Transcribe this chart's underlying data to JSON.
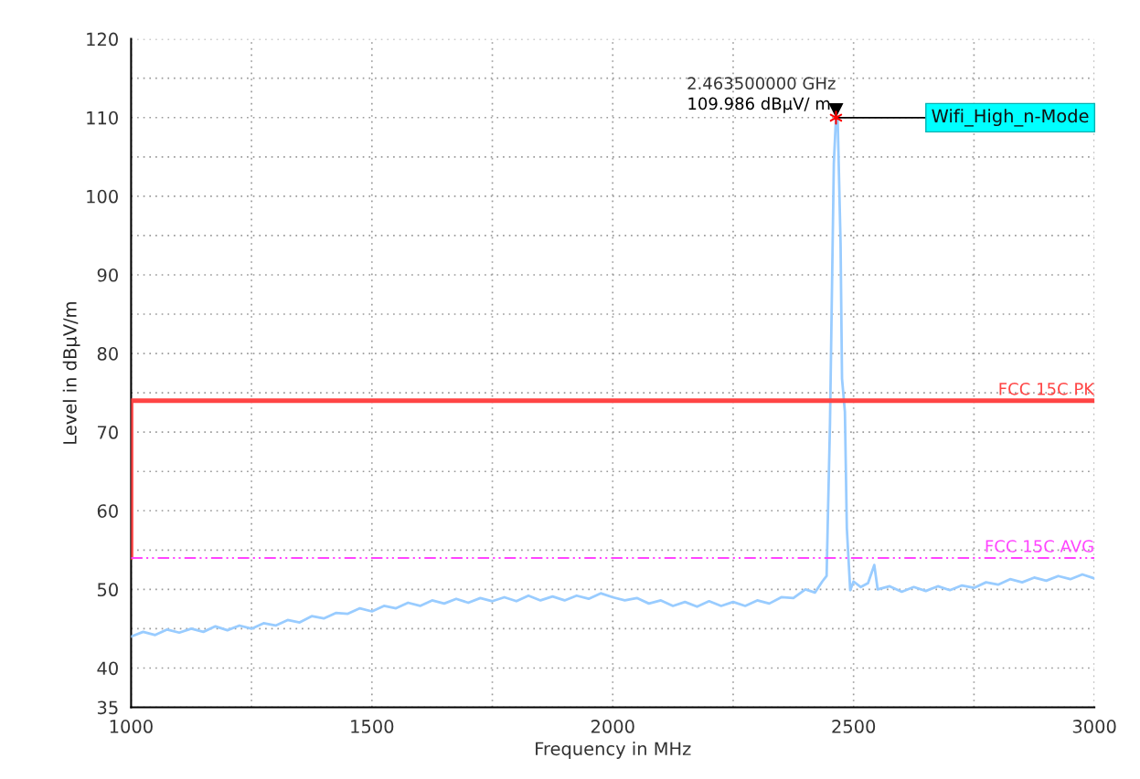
{
  "chart_data": {
    "type": "line",
    "xlabel": "Frequency in MHz",
    "ylabel": "Level in dBµV/m",
    "xlim": [
      1000,
      3000
    ],
    "xticks": [
      1000,
      {
        "value": 1250,
        "label": null
      },
      1500,
      {
        "value": 1750,
        "label": null
      },
      2000,
      {
        "value": 2250,
        "label": null
      },
      2500,
      {
        "value": 2750,
        "label": null
      },
      3000
    ],
    "ylim": [
      35,
      120
    ],
    "yticks": [
      35,
      40,
      {
        "value": 45,
        "label": null
      },
      50,
      {
        "value": 55,
        "label": null
      },
      60,
      {
        "value": 65,
        "label": null
      },
      70,
      {
        "value": 75,
        "label": null
      },
      80,
      {
        "value": 85,
        "label": null
      },
      90,
      {
        "value": 95,
        "label": null
      },
      100,
      {
        "value": 105,
        "label": null
      },
      110,
      {
        "value": 115,
        "label": null
      },
      120
    ],
    "grid": true,
    "legend": false,
    "series": [
      {
        "color": "#99ccff",
        "line_style": "solid",
        "x": [
          1000,
          1025,
          1050,
          1075,
          1100,
          1125,
          1150,
          1175,
          1200,
          1225,
          1250,
          1275,
          1300,
          1325,
          1350,
          1375,
          1400,
          1425,
          1450,
          1475,
          1500,
          1525,
          1550,
          1575,
          1600,
          1625,
          1650,
          1675,
          1700,
          1725,
          1750,
          1775,
          1800,
          1825,
          1850,
          1875,
          1900,
          1925,
          1950,
          1975,
          2000,
          2025,
          2050,
          2075,
          2100,
          2125,
          2150,
          2175,
          2200,
          2225,
          2250,
          2275,
          2300,
          2325,
          2350,
          2375,
          2400,
          2420,
          2435,
          2444,
          2446,
          2451,
          2459,
          2463.5,
          2467,
          2473,
          2476,
          2482,
          2486,
          2493,
          2500,
          2515,
          2530,
          2543,
          2550,
          2575,
          2600,
          2625,
          2650,
          2675,
          2700,
          2725,
          2750,
          2775,
          2800,
          2825,
          2850,
          2875,
          2900,
          2925,
          2950,
          2975,
          3000
        ],
        "values": [
          44.0,
          44.6,
          44.2,
          44.9,
          44.5,
          45.0,
          44.6,
          45.3,
          44.8,
          45.4,
          45.0,
          45.7,
          45.4,
          46.1,
          45.8,
          46.6,
          46.3,
          47.0,
          46.9,
          47.6,
          47.2,
          47.9,
          47.6,
          48.3,
          47.9,
          48.6,
          48.2,
          48.8,
          48.3,
          48.9,
          48.5,
          49.0,
          48.5,
          49.2,
          48.6,
          49.1,
          48.6,
          49.2,
          48.8,
          49.5,
          49.0,
          48.6,
          48.9,
          48.2,
          48.6,
          47.9,
          48.4,
          47.8,
          48.5,
          47.9,
          48.4,
          47.9,
          48.6,
          48.2,
          49.0,
          48.9,
          50.0,
          49.6,
          51.0,
          51.7,
          57.3,
          71.0,
          104.2,
          110,
          109.8,
          94.0,
          76.8,
          72.6,
          57.8,
          49.9,
          51.0,
          50.3,
          50.8,
          53.1,
          50.0,
          50.4,
          49.7,
          50.3,
          49.8,
          50.4,
          49.9,
          50.5,
          50.2,
          50.9,
          50.6,
          51.3,
          50.9,
          51.5,
          51.1,
          51.7,
          51.3,
          51.9,
          51.4
        ]
      },
      {
        "name": "FCC 15C PK",
        "color": "#ff4444",
        "line_style": "solid",
        "x": [
          1000,
          1000,
          3000
        ],
        "values": [
          54,
          74,
          74
        ]
      },
      {
        "name": "FCC 15C AVG",
        "color": "#ff44ff",
        "line_style": "dashdot",
        "x": [
          1000,
          3000
        ],
        "values": [
          54,
          54
        ]
      },
      {
        "type": "scatter",
        "color": "#ff0000",
        "marker": "cross",
        "x": [
          2463.5
        ],
        "values": [
          109.986
        ]
      }
    ],
    "annotations": [
      "2.463500000 GHz",
      "109.986 dBµV/ m",
      {
        "text": "Wifi_High_n-Mode",
        "x": 2463.5,
        "y": 109.986
      }
    ]
  }
}
